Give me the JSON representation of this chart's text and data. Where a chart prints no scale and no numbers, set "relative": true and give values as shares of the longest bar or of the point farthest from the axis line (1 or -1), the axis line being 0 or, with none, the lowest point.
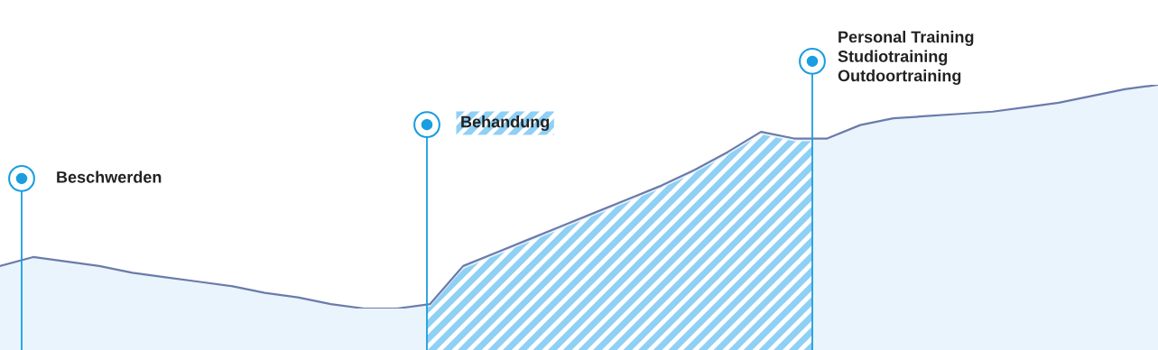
{
  "chart_data": {
    "type": "area",
    "relative": true,
    "categories": [
      null,
      null,
      null,
      null,
      null,
      null,
      null,
      null,
      null,
      null,
      null,
      null,
      null,
      null,
      null,
      null,
      null,
      null,
      null,
      null,
      null,
      null,
      null,
      null,
      null,
      null,
      null,
      null,
      null,
      null,
      null,
      null,
      null,
      null,
      null,
      null
    ],
    "series": [
      {
        "color": "#6b7bab",
        "values": [
          0.19,
          0.23,
          0.21,
          0.19,
          0.16,
          0.14,
          0.12,
          0.1,
          0.07,
          0.05,
          0.02,
          0,
          0,
          0.02,
          0.19,
          0.25,
          0.31,
          0.37,
          0.43,
          0.49,
          0.55,
          0.62,
          0.7,
          0.79,
          0.76,
          0.76,
          0.82,
          0.85,
          0.86,
          0.87,
          0.88,
          0.9,
          0.92,
          0.95,
          0.98,
          1
        ]
      }
    ],
    "annotations": [
      "Beschwerden",
      "Behandung",
      "Personal Training\nStudiotraining\nOutdoortraining"
    ]
  }
}
